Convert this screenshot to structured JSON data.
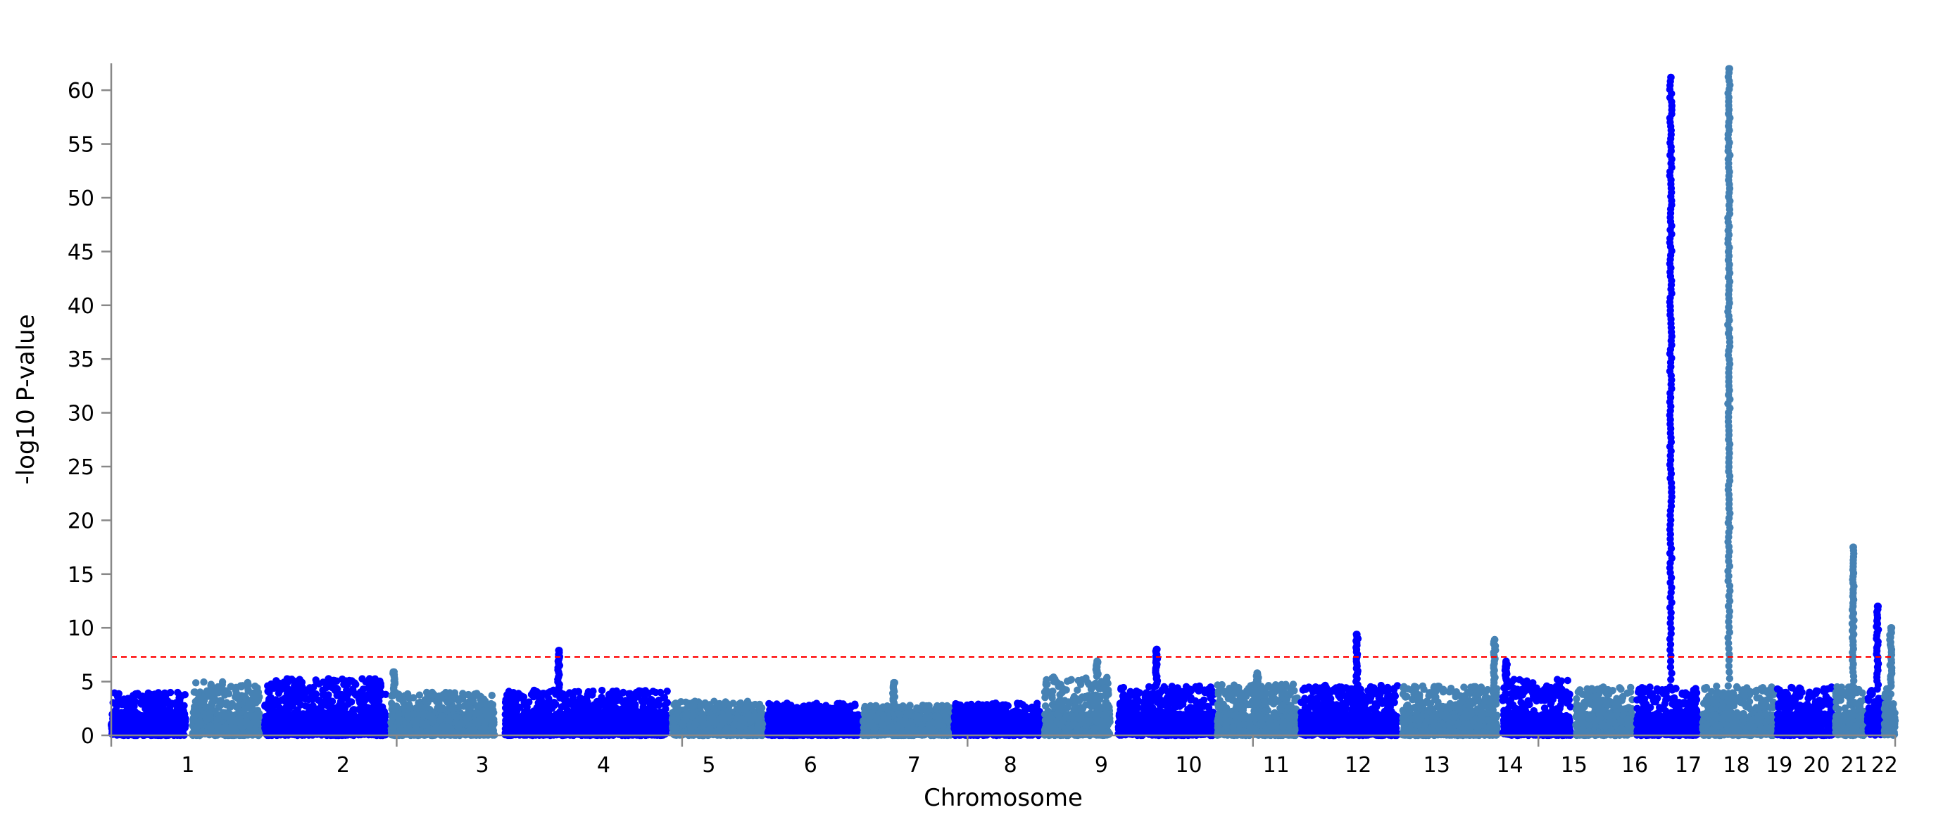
{
  "chart_data": {
    "type": "scatter",
    "subtype": "manhattan",
    "title": "",
    "xlabel": "Chromosome",
    "ylabel": "-log10 P-value",
    "ylim": [
      0,
      62.5
    ],
    "yticks": [
      0,
      5,
      10,
      15,
      20,
      25,
      30,
      35,
      40,
      45,
      50,
      55,
      60
    ],
    "grid": false,
    "legend": "none",
    "significance_threshold": 7.3,
    "threshold_color": "#ff0000",
    "colors": [
      "#0000ff",
      "#4682b4"
    ],
    "chromosomes": [
      {
        "label": "1",
        "span": [
          0,
          0.0418
        ],
        "baseline_max": 4.0,
        "peaks": []
      },
      {
        "label": "2",
        "span": [
          0.0456,
          0.0832
        ],
        "baseline_max": 5.0,
        "peaks": []
      },
      {
        "label": "3",
        "span": [
          0.086,
          0.154
        ],
        "baseline_max": 5.3,
        "peaks": []
      },
      {
        "label": "4",
        "span": [
          0.1568,
          0.215
        ],
        "baseline_max": 4.0,
        "peaks": [
          {
            "pos": 0.03,
            "max": 5.9
          }
        ]
      },
      {
        "label": "5",
        "span": [
          0.2208,
          0.3118
        ],
        "baseline_max": 4.2,
        "peaks": [
          {
            "pos": 0.33,
            "max": 7.9
          }
        ]
      },
      {
        "label": "6",
        "span": [
          0.3145,
          0.3653
        ],
        "baseline_max": 3.2,
        "peaks": []
      },
      {
        "label": "7",
        "span": [
          0.3681,
          0.4189
        ],
        "baseline_max": 3.0,
        "peaks": []
      },
      {
        "label": "8",
        "span": [
          0.4215,
          0.4705
        ],
        "baseline_max": 2.8,
        "peaks": [
          {
            "pos": 0.35,
            "max": 4.9
          }
        ]
      },
      {
        "label": "9",
        "span": [
          0.4725,
          0.521
        ],
        "baseline_max": 3.0,
        "peaks": []
      },
      {
        "label": "10",
        "span": [
          0.523,
          0.56
        ],
        "baseline_max": 5.5,
        "peaks": [
          {
            "pos": 0.8,
            "max": 6.9
          }
        ]
      },
      {
        "label": "11",
        "span": [
          0.5645,
          0.618
        ],
        "baseline_max": 4.6,
        "peaks": [
          {
            "pos": 0.4,
            "max": 8.0
          }
        ]
      },
      {
        "label": "12",
        "span": [
          0.62,
          0.665
        ],
        "baseline_max": 4.8,
        "peaks": [
          {
            "pos": 0.5,
            "max": 5.8
          }
        ]
      },
      {
        "label": "13",
        "span": [
          0.667,
          0.721
        ],
        "baseline_max": 4.7,
        "peaks": [
          {
            "pos": 0.58,
            "max": 9.4
          }
        ]
      },
      {
        "label": "14",
        "span": [
          0.724,
          0.777
        ],
        "baseline_max": 4.6,
        "peaks": [
          {
            "pos": 0.97,
            "max": 8.9
          }
        ]
      },
      {
        "label": "15",
        "span": [
          0.78,
          0.818
        ],
        "baseline_max": 5.2,
        "peaks": [
          {
            "pos": 0.05,
            "max": 6.9
          }
        ]
      },
      {
        "label": "16",
        "span": [
          0.821,
          0.853
        ],
        "baseline_max": 4.5,
        "peaks": []
      },
      {
        "label": "17",
        "span": [
          0.855,
          0.89
        ],
        "baseline_max": 4.5,
        "peaks": [
          {
            "pos": 0.55,
            "max": 61.2
          }
        ]
      },
      {
        "label": "18",
        "span": [
          0.892,
          0.932
        ],
        "baseline_max": 4.6,
        "peaks": [
          {
            "pos": 0.37,
            "max": 62.0
          }
        ]
      },
      {
        "label": "19",
        "span": [
          0.934,
          0.965
        ],
        "baseline_max": 4.5,
        "peaks": []
      },
      {
        "label": "20",
        "span": [
          0.9665,
          0.983
        ],
        "baseline_max": 4.6,
        "peaks": [
          {
            "pos": 0.6,
            "max": 17.5
          }
        ]
      },
      {
        "label": "21",
        "span": [
          0.9845,
          0.9925
        ],
        "baseline_max": 4.3,
        "peaks": [
          {
            "pos": 0.7,
            "max": 12.0
          }
        ]
      },
      {
        "label": "22",
        "span": [
          0.994,
          1.0
        ],
        "baseline_max": 4.6,
        "peaks": [
          {
            "pos": 0.6,
            "max": 10.0
          }
        ]
      }
    ],
    "xtick_labels": [
      "1",
      "2",
      "3",
      "4",
      "5",
      "6",
      "7",
      "8",
      "9",
      "10",
      "11",
      "12",
      "13",
      "14",
      "15",
      "16",
      "17",
      "18",
      "19",
      "20",
      "21",
      "22"
    ],
    "xticks": [
      {
        "label": "1",
        "pos": 0.043
      },
      {
        "label": "2",
        "pos": 0.13
      },
      {
        "label": "3",
        "pos": 0.208
      },
      {
        "label": "4",
        "pos": 0.276
      },
      {
        "label": "5",
        "pos": 0.335
      },
      {
        "label": "6",
        "pos": 0.392
      },
      {
        "label": "7",
        "pos": 0.45
      },
      {
        "label": "8",
        "pos": 0.504
      },
      {
        "label": "9",
        "pos": 0.555
      },
      {
        "label": "10",
        "pos": 0.604
      },
      {
        "label": "11",
        "pos": 0.653
      },
      {
        "label": "12",
        "pos": 0.699
      },
      {
        "label": "13",
        "pos": 0.743
      },
      {
        "label": "14",
        "pos": 0.784
      },
      {
        "label": "15",
        "pos": 0.82
      },
      {
        "label": "16",
        "pos": 0.854
      },
      {
        "label": "17",
        "pos": 0.884
      },
      {
        "label": "18",
        "pos": 0.911
      },
      {
        "label": "19",
        "pos": 0.935
      },
      {
        "label": "20",
        "pos": 0.956
      },
      {
        "label": "21",
        "pos": 0.977
      },
      {
        "label": "22",
        "pos": 0.994
      }
    ]
  }
}
